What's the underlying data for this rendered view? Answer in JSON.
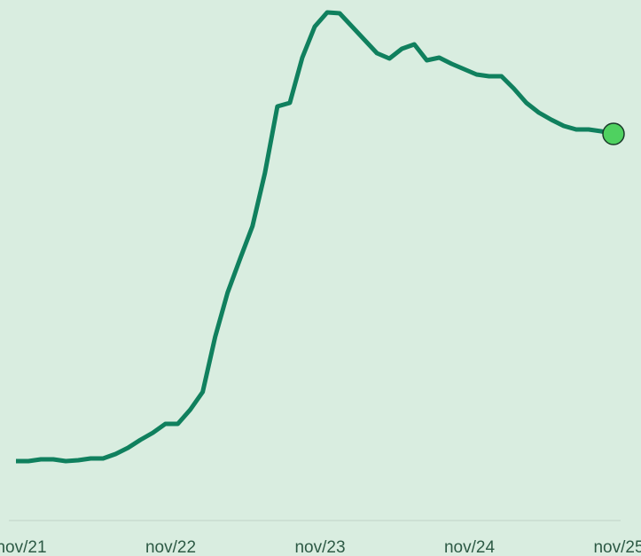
{
  "chart_data": {
    "type": "line",
    "categories": [
      "nov/21",
      null,
      null,
      null,
      null,
      null,
      null,
      null,
      null,
      null,
      null,
      null,
      "nov/22",
      null,
      null,
      null,
      null,
      null,
      null,
      null,
      null,
      null,
      null,
      null,
      "nov/23",
      null,
      null,
      null,
      null,
      null,
      null,
      null,
      null,
      null,
      null,
      null,
      "nov/24",
      null,
      null,
      null,
      null,
      null,
      null,
      null,
      null,
      null,
      null,
      null,
      "nov/25"
    ],
    "series": [
      {
        "color": "#10805e",
        "values": [
          80,
          80,
          82,
          82,
          80,
          81,
          83,
          83,
          88,
          95,
          104,
          112,
          122,
          122,
          138,
          158,
          220,
          270,
          308,
          345,
          405,
          480,
          484,
          535,
          570,
          586,
          585,
          570,
          555,
          540,
          534,
          545,
          550,
          532,
          535,
          528,
          522,
          516,
          514,
          514,
          500,
          484,
          473,
          465,
          458,
          454,
          454,
          452,
          449
        ]
      }
    ],
    "ylim": [
      0,
      600
    ]
  }
}
